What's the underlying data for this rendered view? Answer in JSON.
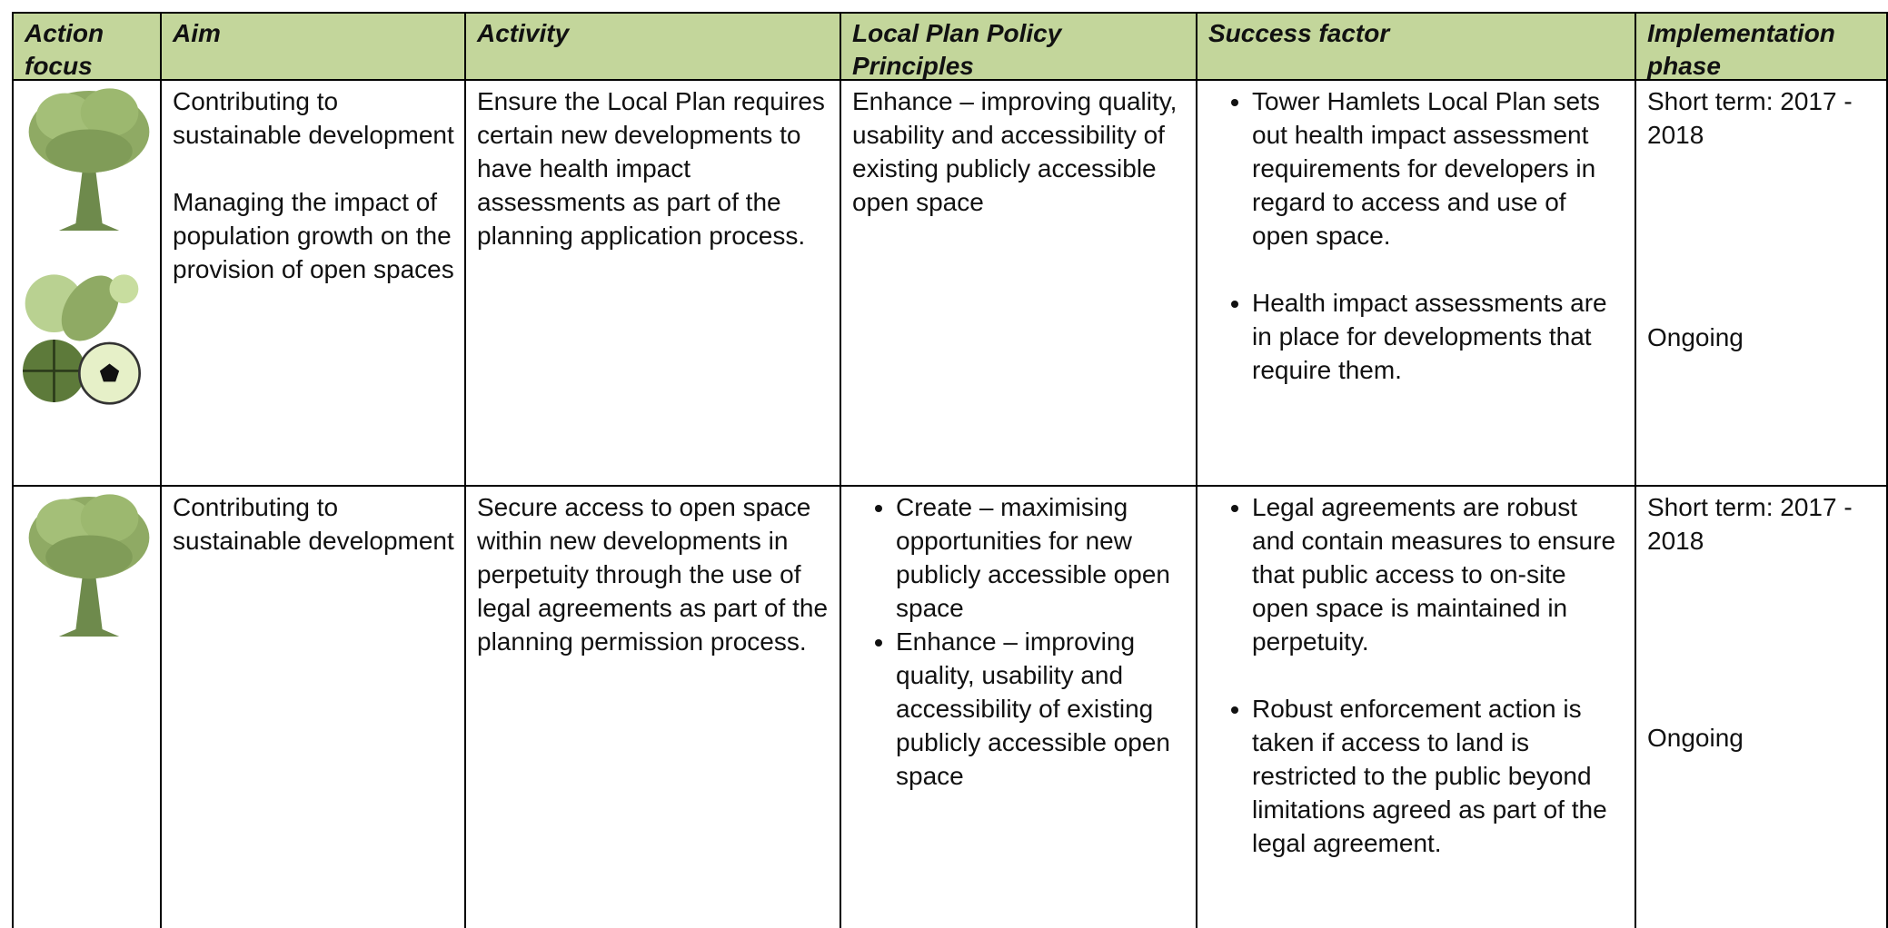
{
  "header": {
    "columns": [
      "Action focus",
      "Aim",
      "Activity",
      "Local Plan Policy Principles",
      "Success factor",
      "Implementation phase"
    ]
  },
  "table": {
    "rows": [
      {
        "aim": [
          "Contributing to sustainable development",
          "Managing the impact of population growth on the provision of open spaces"
        ],
        "activity": "Ensure the Local Plan requires certain new developments to have health impact assessments as part of the planning application process.",
        "principles": "Enhance – improving quality, usability and accessibility of existing publicly accessible open space",
        "success": [
          "Tower Hamlets Local Plan sets out health impact assessment requirements for developers in regard to access and use of open space.",
          "Health impact assessments are in place for developments that require them."
        ],
        "phase": [
          "Short term: 2017 - 2018",
          "Ongoing"
        ]
      },
      {
        "aim": [
          "Contributing to sustainable development"
        ],
        "activity": "Secure access to open space within new developments in perpetuity through the use of legal agreements as part of the planning permission process.",
        "principles": [
          "Create – maximising opportunities for new publicly accessible open space",
          "Enhance – improving quality, usability and accessibility of existing publicly accessible open space"
        ],
        "success": [
          "Legal agreements are robust and contain measures to ensure that public access to on-site open space is maintained in perpetuity.",
          "Robust enforcement action is taken if access to land is restricted to the public beyond limitations agreed as part of the legal agreement."
        ],
        "phase": [
          "Short term: 2017 - 2018",
          "Ongoing"
        ]
      }
    ]
  }
}
